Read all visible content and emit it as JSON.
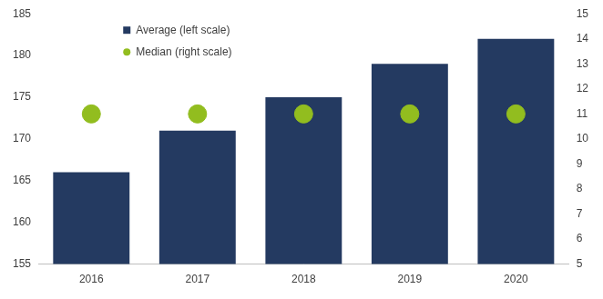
{
  "chart_data": {
    "type": "bar",
    "categories": [
      "2016",
      "2017",
      "2018",
      "2019",
      "2020"
    ],
    "series": [
      {
        "name": "Average (left scale)",
        "type": "bar",
        "color": "#243a61",
        "values": [
          166,
          171,
          175,
          179,
          182
        ]
      },
      {
        "name": "Median (right scale)",
        "type": "scatter",
        "marker": "circle",
        "color": "#92bd1f",
        "values": [
          11,
          11,
          11,
          11,
          11
        ],
        "axis": "y2"
      }
    ],
    "ylim": [
      155,
      185
    ],
    "yticks": [
      155,
      160,
      165,
      170,
      175,
      180,
      185
    ],
    "y2lim": [
      5,
      15
    ],
    "y2ticks": [
      5,
      6,
      7,
      8,
      9,
      10,
      11,
      12,
      13,
      14,
      15
    ],
    "grid": false,
    "legend": "upper left"
  }
}
